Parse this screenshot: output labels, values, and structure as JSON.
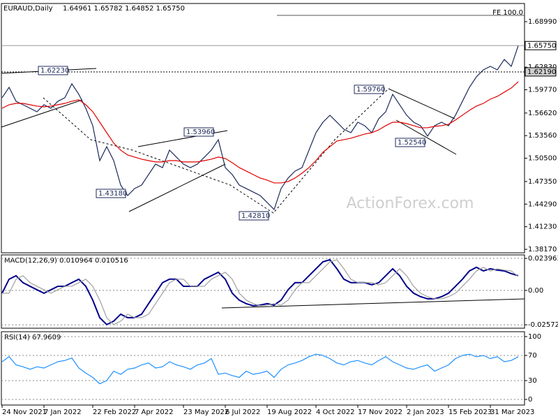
{
  "chart_data": [
    {
      "type": "line",
      "title": "EURAUD,Daily",
      "subtitle": "1.64961 1.65782 1.64852 1.65750",
      "categories": [
        "24 Nov 2021",
        null,
        null,
        null,
        null,
        null,
        "7 Jan 2022",
        null,
        null,
        null,
        null,
        null,
        null,
        "22 Feb 2022",
        null,
        null,
        null,
        null,
        null,
        "7 Apr 2022",
        null,
        null,
        null,
        null,
        null,
        null,
        "23 May 2022",
        null,
        null,
        null,
        null,
        null,
        "6 Jul 2022",
        null,
        null,
        null,
        null,
        null,
        "19 Aug 2022",
        null,
        null,
        null,
        null,
        null,
        null,
        "4 Oct 2022",
        null,
        null,
        null,
        null,
        null,
        "17 Nov 2022",
        null,
        null,
        null,
        null,
        null,
        null,
        "2 Jan 2023",
        null,
        null,
        null,
        null,
        null,
        "15 Feb 2023",
        null,
        null,
        null,
        null,
        null,
        "31 Mar 2023",
        null,
        null,
        null,
        null
      ],
      "series": [
        {
          "color": "#1c2a5a",
          "values": [
            1.5869,
            1.601,
            1.5821,
            1.5774,
            1.5727,
            1.5679,
            1.5774,
            1.5727,
            1.5821,
            1.5869,
            1.6058,
            1.5916,
            1.5727,
            1.549,
            1.5018,
            1.5207,
            1.5018,
            1.4687,
            1.4545,
            1.464,
            1.4687,
            1.4829,
            1.497,
            1.4923,
            1.516,
            1.5065,
            1.497,
            1.4923,
            1.497,
            1.5065,
            1.516,
            1.5301,
            1.4923,
            1.4829,
            1.4687,
            1.464,
            1.4593,
            1.4545,
            1.4451,
            1.4356,
            1.464,
            1.4781,
            1.4876,
            1.4923,
            1.516,
            1.5396,
            1.5538,
            1.5632,
            1.5538,
            1.5443,
            1.5396,
            1.5538,
            1.549,
            1.5396,
            1.5585,
            1.5679,
            1.5916,
            1.5774,
            1.5632,
            1.5538,
            1.549,
            1.5349,
            1.549,
            1.5538,
            1.549,
            1.5632,
            1.5821,
            1.601,
            1.6152,
            1.6247,
            1.6294,
            1.6247,
            1.6388,
            1.6294,
            1.6575
          ]
        },
        {
          "color": "#e00000",
          "values": [
            1.5727,
            1.5774,
            1.5793,
            1.5793,
            1.5774,
            1.5756,
            1.5746,
            1.5756,
            1.5774,
            1.5793,
            1.5822,
            1.5841,
            1.5774,
            1.568,
            1.5538,
            1.5396,
            1.5255,
            1.516,
            1.5094,
            1.5066,
            1.5037,
            1.5018,
            1.5,
            1.5,
            1.5018,
            1.5018,
            1.5,
            1.5,
            1.5,
            1.5018,
            1.5037,
            1.5066,
            1.5047,
            1.499,
            1.4924,
            1.4877,
            1.4829,
            1.4782,
            1.4754,
            1.4716,
            1.4716,
            1.4735,
            1.4782,
            1.4848,
            1.4924,
            1.5018,
            1.5132,
            1.5207,
            1.5283,
            1.5302,
            1.5321,
            1.5349,
            1.5378,
            1.5396,
            1.5434,
            1.5491,
            1.5538,
            1.5538,
            1.5519,
            1.5491,
            1.5463,
            1.5463,
            1.5481,
            1.5491,
            1.551,
            1.5567,
            1.5633,
            1.5699,
            1.5756,
            1.5793,
            1.585,
            1.5888,
            1.5945,
            1.6001,
            1.6086
          ]
        }
      ],
      "ylim": [
        1.377,
        1.7145
      ],
      "yticks": [
        {
          "value": 1.3817,
          "label": "1.38170"
        },
        {
          "value": 1.4123,
          "label": "1.41230"
        },
        {
          "value": 1.4429,
          "label": "1.44290"
        },
        {
          "value": 1.4735,
          "label": "1.47350"
        },
        {
          "value": 1.505,
          "label": "1.50500"
        },
        {
          "value": 1.5356,
          "label": "1.53560"
        },
        {
          "value": 1.5662,
          "label": "1.56620"
        },
        {
          "value": 1.5977,
          "label": "1.59770"
        },
        {
          "value": 1.6283,
          "label": "1.62830"
        },
        {
          "value": 1.6899,
          "label": "1.68990"
        }
      ],
      "price_line": {
        "value": 1.6575,
        "label": "1.65750"
      },
      "level_line": {
        "value": 1.6219,
        "label": "1.62190"
      },
      "annotations": [
        "1.62230",
        "1.53960",
        "1.43180",
        "1.42810",
        "1.59760",
        "1.52540"
      ],
      "fe_label": "FE 100.0",
      "watermark": "ActionForex.com",
      "grid": false
    },
    {
      "type": "line",
      "title": "MACD(12,26,9) 0.010964 0.010516",
      "series": [
        {
          "color": "#00008b",
          "values": [
            -0.0021,
            0.0084,
            0.011,
            0.0058,
            0.0031,
            0.0005,
            -0.0021,
            0.0005,
            0.0031,
            0.0031,
            0.0058,
            0.0084,
            0.0031,
            -0.0073,
            -0.0204,
            -0.0256,
            -0.023,
            -0.0178,
            -0.0204,
            -0.0204,
            -0.0178,
            -0.0099,
            -0.0021,
            0.0058,
            0.0084,
            0.0084,
            0.0031,
            0.0031,
            0.0031,
            0.0084,
            0.011,
            0.0136,
            0.0084,
            -0.0021,
            -0.0073,
            -0.0099,
            -0.0115,
            -0.011,
            -0.0099,
            -0.011,
            -0.0073,
            0.0005,
            0.0058,
            0.0058,
            0.011,
            0.0162,
            0.0214,
            0.023,
            0.0162,
            0.0084,
            0.0058,
            0.0058,
            0.0058,
            0.0042,
            0.0058,
            0.011,
            0.0162,
            0.011,
            0.0031,
            -0.0021,
            -0.0047,
            -0.0063,
            -0.0063,
            -0.0047,
            -0.0021,
            0.0031,
            0.0084,
            0.0146,
            0.0173,
            0.0146,
            0.0162,
            0.0152,
            0.0146,
            0.0126,
            0.011
          ]
        },
        {
          "color": "#a0a0a0",
          "values": [
            -0.0021,
            -0.0021,
            0.0084,
            0.011,
            0.0058,
            0.0031,
            0.0005,
            -0.0021,
            0.0005,
            0.0031,
            0.0031,
            0.0058,
            0.0084,
            0.0031,
            -0.0073,
            -0.0204,
            -0.0256,
            -0.023,
            -0.0178,
            -0.0204,
            -0.0204,
            -0.0178,
            -0.0099,
            -0.0021,
            0.0058,
            0.0084,
            0.0084,
            0.0031,
            0.0031,
            0.0031,
            0.0084,
            0.011,
            0.0136,
            0.0084,
            -0.0021,
            -0.0073,
            -0.0099,
            -0.0115,
            -0.011,
            -0.0099,
            -0.011,
            -0.0073,
            0.0005,
            0.0058,
            0.0058,
            0.011,
            0.0162,
            0.0214,
            0.023,
            0.0162,
            0.0084,
            0.0058,
            0.0058,
            0.0058,
            0.0042,
            0.0058,
            0.011,
            0.0162,
            0.011,
            0.0031,
            -0.0021,
            -0.0047,
            -0.0063,
            -0.0063,
            -0.0047,
            -0.0021,
            0.0031,
            0.0084,
            0.0146,
            0.0173,
            0.0146,
            0.0162,
            0.0152,
            0.0146,
            0.0105
          ]
        }
      ],
      "ylim": [
        -0.0283,
        0.0266
      ],
      "yticks": [
        -0.025726,
        {
          "value": 0,
          "label": "0.00"
        },
        0.023963
      ],
      "grid": true
    },
    {
      "type": "line",
      "title": "RSI(14) 67.9609",
      "series": [
        {
          "color": "#1e90ff",
          "values": [
            60,
            68,
            55,
            52,
            48,
            52,
            50,
            55,
            60,
            62,
            66,
            50,
            42,
            35,
            25,
            30,
            45,
            40,
            48,
            50,
            55,
            58,
            50,
            52,
            60,
            55,
            52,
            48,
            55,
            58,
            65,
            40,
            42,
            38,
            35,
            45,
            40,
            42,
            45,
            35,
            48,
            55,
            58,
            62,
            68,
            72,
            70,
            65,
            58,
            55,
            60,
            62,
            58,
            55,
            62,
            68,
            60,
            55,
            50,
            48,
            52,
            55,
            45,
            50,
            55,
            65,
            70,
            72,
            68,
            70,
            65,
            68,
            60,
            62,
            68
          ]
        }
      ],
      "ylim": [
        -8.9,
        107.8
      ],
      "yticks": [
        0,
        30,
        70,
        100
      ],
      "grid": true
    }
  ]
}
